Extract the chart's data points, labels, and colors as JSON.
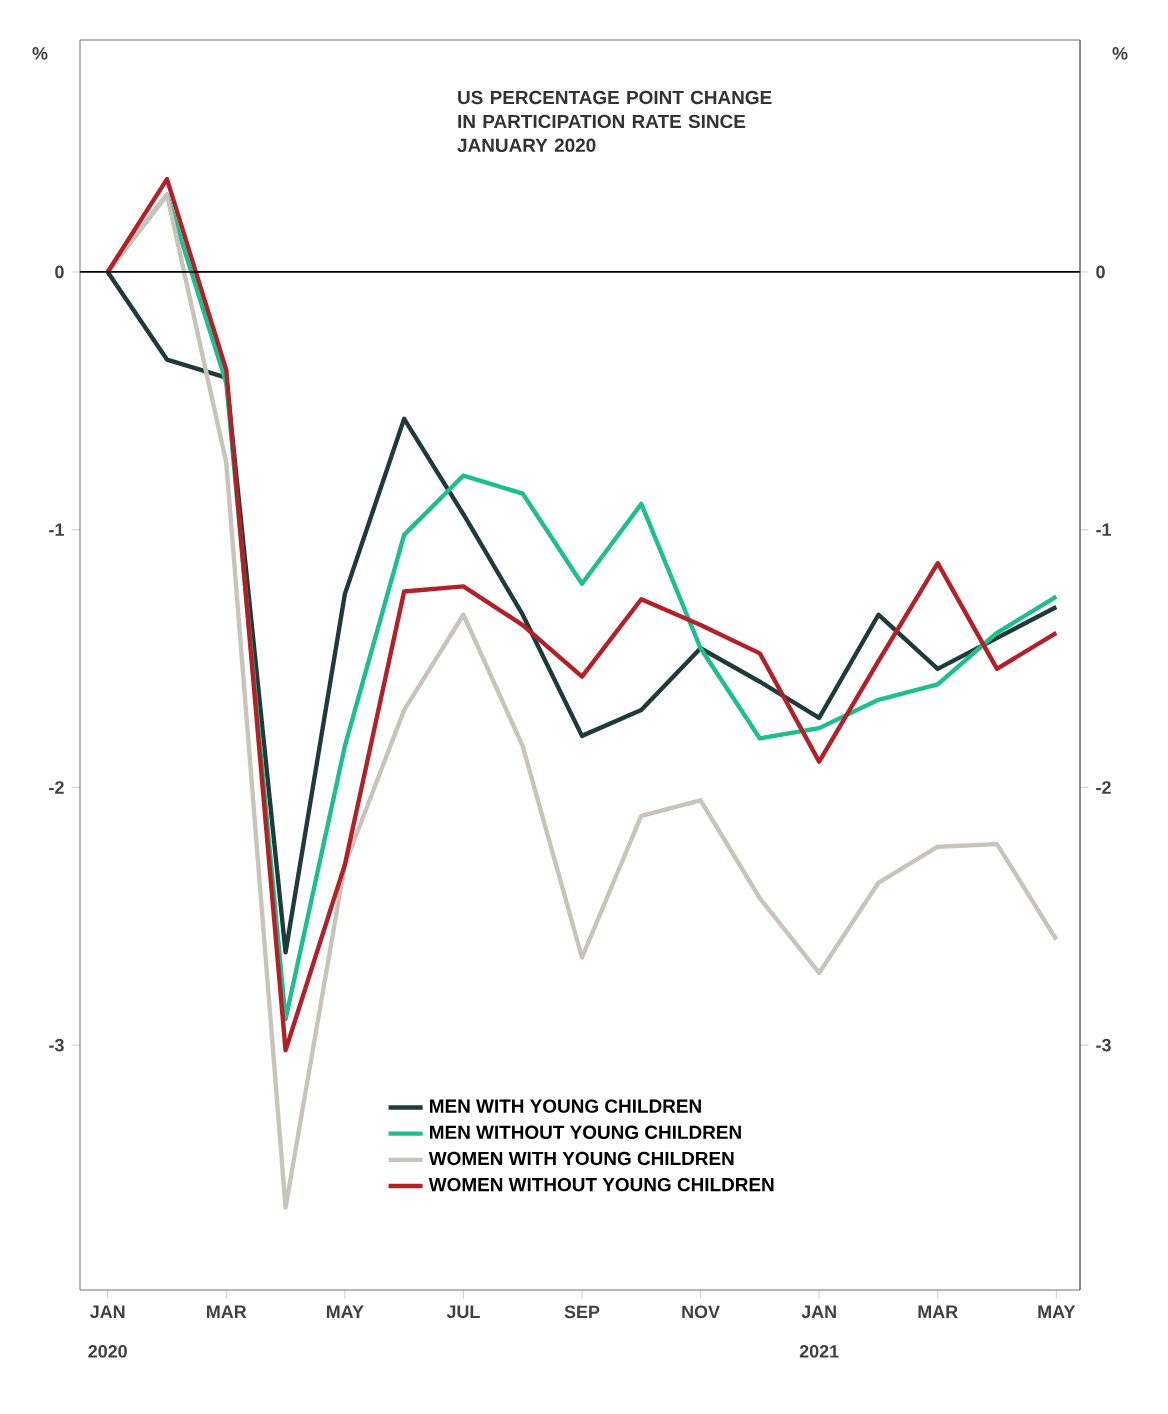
{
  "chart_data": {
    "type": "line",
    "title": "US PERCENTAGE POINT CHANGE IN PARTICIPATION RATE SINCE JANUARY 2020",
    "ylabel": "%",
    "y2label": "%",
    "x": [
      "2020-01",
      "2020-02",
      "2020-03",
      "2020-04",
      "2020-05",
      "2020-06",
      "2020-07",
      "2020-08",
      "2020-09",
      "2020-10",
      "2020-11",
      "2020-12",
      "2021-01",
      "2021-02",
      "2021-03",
      "2021-04",
      "2021-05"
    ],
    "xlim": [
      "2019-12-17",
      "2021-05-13"
    ],
    "xticks": [
      {
        "value": "2020-01",
        "label": "JAN"
      },
      {
        "value": "2020-03",
        "label": "MAR"
      },
      {
        "value": "2020-05",
        "label": "MAY"
      },
      {
        "value": "2020-07",
        "label": "JUL"
      },
      {
        "value": "2020-09",
        "label": "SEP"
      },
      {
        "value": "2020-11",
        "label": "NOV"
      },
      {
        "value": "2021-01",
        "label": "JAN"
      },
      {
        "value": "2021-03",
        "label": "MAR"
      },
      {
        "value": "2021-05",
        "label": "MAY"
      }
    ],
    "ylim": [
      -3.95,
      0.9
    ],
    "yticks": [
      0,
      -1,
      -2,
      -3
    ],
    "y2lim": [
      -3.95,
      0.9
    ],
    "y2ticks": [
      0,
      -1,
      -2,
      -3
    ],
    "series": [
      {
        "name": "MEN WITH YOUNG CHILDREN",
        "color": "#1f3a3a",
        "values": [
          0,
          -0.34,
          -0.41,
          -2.64,
          -1.25,
          -0.57,
          -0.94,
          -1.33,
          -1.8,
          -1.7,
          -1.46,
          -1.59,
          -1.73,
          -1.33,
          -1.54,
          -1.42,
          -1.3
        ]
      },
      {
        "name": "MEN WITHOUT YOUNG CHILDREN",
        "color": "#1dbf8f",
        "values": [
          0,
          0.3,
          -0.43,
          -2.9,
          -1.84,
          -1.02,
          -0.79,
          -0.86,
          -1.21,
          -0.9,
          -1.46,
          -1.81,
          -1.77,
          -1.66,
          -1.6,
          -1.4,
          -1.26
        ]
      },
      {
        "name": "WOMEN WITH YOUNG CHILDREN",
        "color": "#c8c4bc",
        "values": [
          0,
          0.3,
          -0.74,
          -3.63,
          -2.3,
          -1.7,
          -1.33,
          -1.84,
          -2.66,
          -2.11,
          -2.05,
          -2.43,
          -2.72,
          -2.37,
          -2.23,
          -2.22,
          -2.59
        ]
      },
      {
        "name": "WOMEN WITHOUT YOUNG CHILDREN",
        "color": "#b32028",
        "values": [
          0,
          0.36,
          -0.38,
          -3.02,
          -2.3,
          -1.24,
          -1.22,
          -1.37,
          -1.57,
          -1.27,
          -1.37,
          -1.48,
          -1.9,
          -1.51,
          -1.13,
          -1.54,
          -1.4
        ]
      }
    ],
    "annotations": [
      "2020",
      "2021"
    ],
    "ref_lines": [
      {
        "axis": "y",
        "value": 0,
        "color": "#000000"
      }
    ],
    "legend": "bottom",
    "marker": "none",
    "line_style": "solid",
    "grid": false
  }
}
